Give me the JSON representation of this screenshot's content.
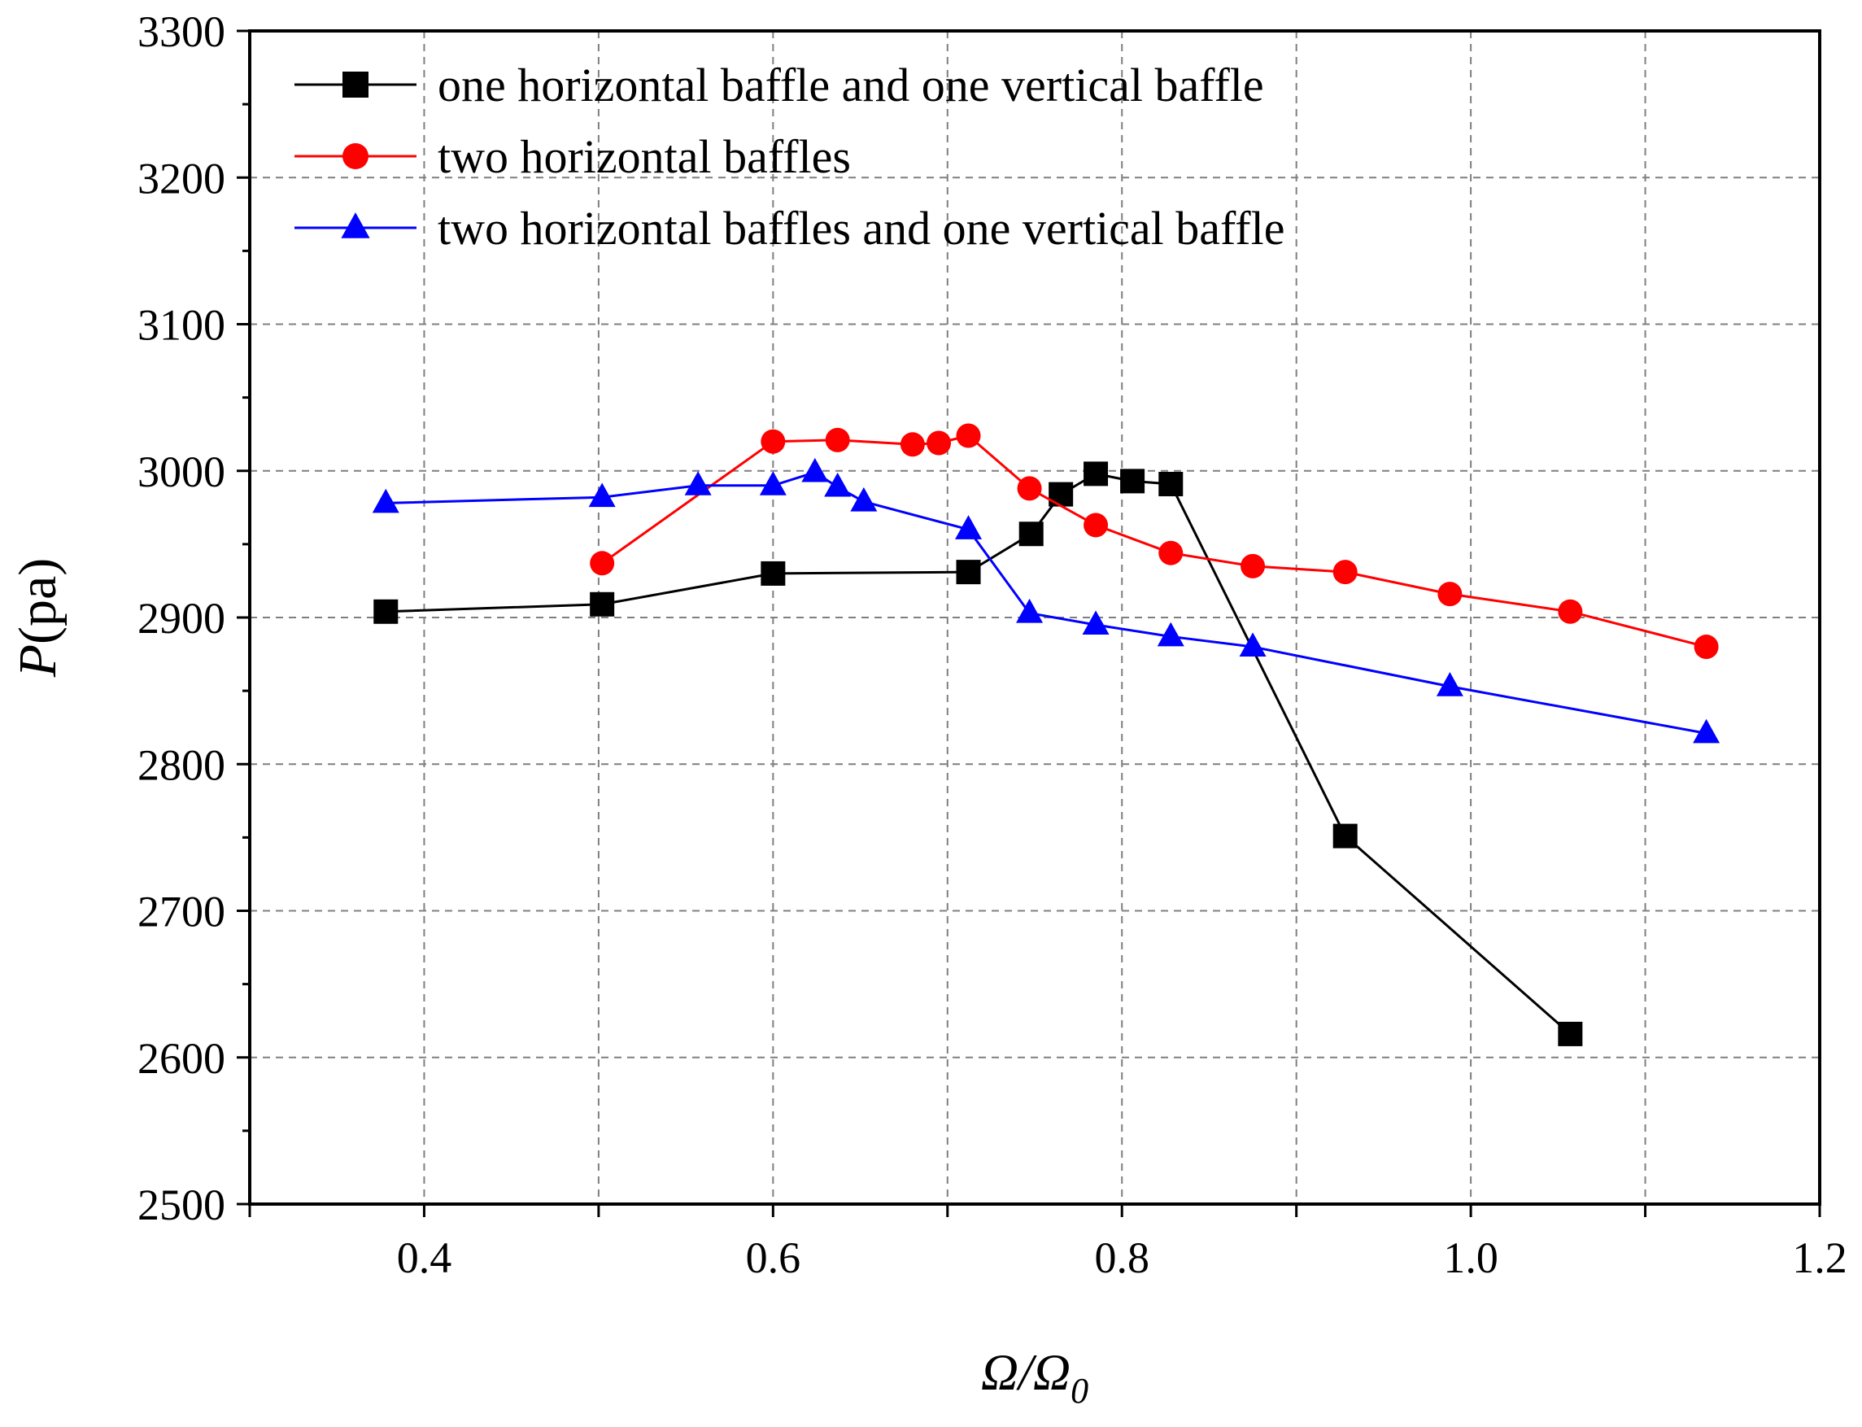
{
  "chart_data": {
    "type": "line",
    "title": "",
    "xlabel": {
      "main": "Ω/Ω",
      "subscript": "0",
      "full": "Ω/Ω0"
    },
    "ylabel": {
      "italic": "P",
      "unit": "(pa)",
      "full": "P(pa)"
    },
    "xlim": [
      0.3,
      1.2
    ],
    "ylim": [
      2500,
      3300
    ],
    "xticks": [
      0.4,
      0.6,
      0.8,
      1.0,
      1.2
    ],
    "xtick_labels": [
      "0.4",
      "0.6",
      "0.8",
      "1.0",
      "1.2"
    ],
    "yticks": [
      2500,
      2600,
      2700,
      2800,
      2900,
      3000,
      3100,
      3200,
      3300
    ],
    "ytick_labels": [
      "2500",
      "2600",
      "2700",
      "2800",
      "2900",
      "3000",
      "3100",
      "3200",
      "3300"
    ],
    "grid": true,
    "legend_position": "top-left",
    "series": [
      {
        "name": "one horizontal baffle and one vertical baffle",
        "color": "#000000",
        "marker": "square",
        "x": [
          0.378,
          0.502,
          0.6,
          0.712,
          0.748,
          0.765,
          0.785,
          0.806,
          0.828,
          0.928,
          1.057
        ],
        "y": [
          2904,
          2909,
          2930,
          2931,
          2957,
          2984,
          2998,
          2993,
          2991,
          2751,
          2616
        ]
      },
      {
        "name": "two horizontal baffles",
        "color": "#ff0000",
        "marker": "circle",
        "x": [
          0.502,
          0.6,
          0.637,
          0.68,
          0.695,
          0.712,
          0.747,
          0.785,
          0.828,
          0.875,
          0.928,
          0.988,
          1.057,
          1.135
        ],
        "y": [
          2937,
          3020,
          3021,
          3018,
          3019,
          3024,
          2988,
          2963,
          2944,
          2935,
          2931,
          2916,
          2904,
          2880
        ]
      },
      {
        "name": "two horizontal baffles and one vertical baffle",
        "color": "#0000ff",
        "marker": "triangle",
        "x": [
          0.378,
          0.502,
          0.557,
          0.6,
          0.624,
          0.637,
          0.652,
          0.712,
          0.747,
          0.785,
          0.828,
          0.875,
          0.988,
          1.135
        ],
        "y": [
          2978,
          2982,
          2990,
          2990,
          2999,
          2989,
          2979,
          2960,
          2903,
          2895,
          2887,
          2880,
          2853,
          2821
        ]
      }
    ]
  }
}
